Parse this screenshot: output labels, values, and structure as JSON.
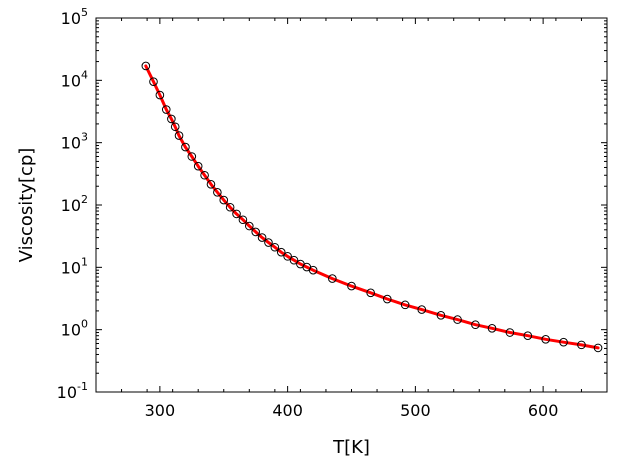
{
  "chart_data": {
    "type": "scatter",
    "xlabel": "T[K]",
    "ylabel": "Viscosity[cp]",
    "xlim": [
      250,
      650
    ],
    "ylim": [
      0.1,
      100000
    ],
    "yscale": "log",
    "grid": false,
    "x_ticks": [
      {
        "value": 300,
        "label": "300"
      },
      {
        "value": 400,
        "label": "400"
      },
      {
        "value": 500,
        "label": "500"
      },
      {
        "value": 600,
        "label": "600"
      }
    ],
    "y_ticks": [
      {
        "value": 0.1,
        "base": "10",
        "exp": "-1"
      },
      {
        "value": 1,
        "base": "10",
        "exp": "0"
      },
      {
        "value": 10,
        "base": "10",
        "exp": "1"
      },
      {
        "value": 100,
        "base": "10",
        "exp": "2"
      },
      {
        "value": 1000,
        "base": "10",
        "exp": "3"
      },
      {
        "value": 10000,
        "base": "10",
        "exp": "4"
      },
      {
        "value": 100000,
        "base": "10",
        "exp": "5"
      }
    ],
    "series": [
      {
        "kind": "points",
        "marker": "open-circle",
        "color": "#000000",
        "x": [
          289,
          295,
          300,
          305,
          309,
          312,
          315,
          320,
          325,
          330,
          335,
          340,
          345,
          350,
          355,
          360,
          365,
          370,
          375,
          380,
          385,
          390,
          395,
          400,
          405,
          410,
          415,
          420,
          435,
          450,
          465,
          478,
          492,
          505,
          520,
          533,
          547,
          560,
          574,
          588,
          602,
          616,
          630,
          643
        ],
        "y": [
          17000,
          9500,
          5800,
          3400,
          2400,
          1800,
          1300,
          850,
          600,
          420,
          300,
          215,
          160,
          120,
          92,
          72,
          58,
          46,
          37,
          30,
          25,
          21,
          17.5,
          15,
          13,
          11.3,
          10.1,
          9.0,
          6.6,
          5.0,
          3.9,
          3.1,
          2.5,
          2.1,
          1.7,
          1.45,
          1.2,
          1.05,
          0.9,
          0.8,
          0.7,
          0.63,
          0.57,
          0.51
        ]
      },
      {
        "kind": "line",
        "color": "#ff0000",
        "x": [
          289,
          295,
          300,
          305,
          309,
          312,
          315,
          320,
          325,
          330,
          335,
          340,
          345,
          350,
          355,
          360,
          365,
          370,
          375,
          380,
          385,
          390,
          395,
          400,
          405,
          410,
          415,
          420,
          435,
          450,
          465,
          478,
          492,
          505,
          520,
          533,
          547,
          560,
          574,
          588,
          602,
          616,
          630,
          643
        ],
        "y": [
          17000,
          9500,
          5800,
          3400,
          2400,
          1800,
          1300,
          850,
          600,
          420,
          300,
          215,
          160,
          120,
          92,
          72,
          58,
          46,
          37,
          30,
          25,
          21,
          17.5,
          15,
          13,
          11.3,
          10.1,
          9.0,
          6.6,
          5.0,
          3.9,
          3.1,
          2.5,
          2.1,
          1.7,
          1.45,
          1.2,
          1.05,
          0.9,
          0.8,
          0.7,
          0.63,
          0.57,
          0.51
        ]
      }
    ]
  }
}
